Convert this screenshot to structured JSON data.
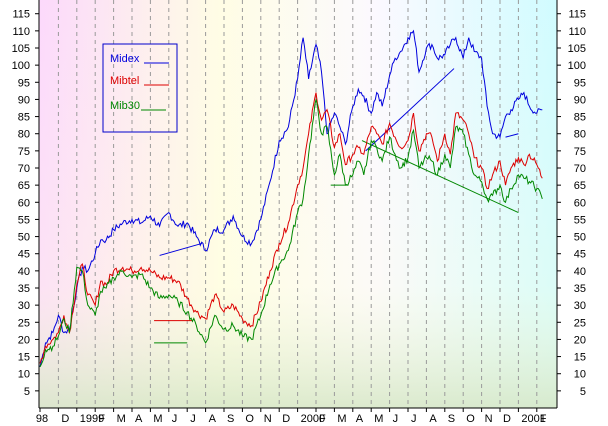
{
  "chart_data": {
    "type": "line",
    "y_ticks": [
      5,
      10,
      15,
      20,
      25,
      30,
      35,
      40,
      45,
      50,
      55,
      60,
      65,
      70,
      75,
      80,
      85,
      90,
      95,
      100,
      105,
      110,
      115
    ],
    "ylim": [
      0,
      119
    ],
    "x_ticks": [
      "98",
      "D",
      "1999",
      "F",
      "M",
      "A",
      "M",
      "J",
      "J",
      "A",
      "S",
      "O",
      "N",
      "D",
      "2000",
      "F",
      "M",
      "A",
      "M",
      "J",
      "J",
      "A",
      "S",
      "O",
      "N",
      "D",
      "2001",
      "F"
    ],
    "grid": "vertical-dashed",
    "legend": {
      "placement": "top-left",
      "entries": [
        "Midex",
        "Mibtel",
        "Mib30"
      ]
    },
    "series": [
      {
        "name": "Midex",
        "color": "#0000dd",
        "x": [
          0,
          0.3,
          0.7,
          1,
          1.3,
          1.6,
          2,
          2.3,
          2.6,
          3,
          3.3,
          3.6,
          4,
          4.5,
          5,
          5.5,
          6,
          6.5,
          7,
          7.5,
          8,
          8.5,
          9,
          9.5,
          10,
          10.5,
          11,
          11.5,
          12,
          12.5,
          13,
          13.5,
          14,
          14.3,
          14.6,
          15,
          15.3,
          15.6,
          16,
          16.3,
          16.6,
          17,
          17.3,
          17.6,
          18,
          18.3,
          18.6,
          19,
          19.3,
          19.6,
          20,
          20.3,
          20.6,
          21,
          21.3,
          21.6,
          22,
          22.3,
          22.6,
          23,
          23.3,
          23.6,
          24,
          24.3,
          24.6,
          25,
          25.3,
          25.6,
          26,
          26.3,
          26.6,
          27,
          27.3
        ],
        "values": [
          12,
          19,
          22,
          27,
          22,
          23,
          35,
          41,
          40,
          45,
          49,
          49,
          52,
          54,
          55,
          54,
          56,
          53,
          57,
          53,
          54,
          50,
          46,
          52,
          52,
          56,
          50,
          48,
          55,
          66,
          78,
          82,
          96,
          108,
          96,
          106,
          98,
          80,
          86,
          82,
          77,
          88,
          93,
          91,
          86,
          92,
          88,
          97,
          102,
          104,
          108,
          110,
          98,
          105,
          106,
          102,
          103,
          106,
          108,
          102,
          108,
          104,
          102,
          88,
          80,
          79,
          85,
          87,
          90,
          92,
          88,
          86,
          87
        ]
      },
      {
        "name": "Mibtel",
        "color": "#dd0000",
        "x": [
          0,
          0.3,
          0.7,
          1,
          1.3,
          1.6,
          2,
          2.3,
          2.6,
          3,
          3.3,
          3.6,
          4,
          4.5,
          5,
          5.5,
          6,
          6.5,
          7,
          7.5,
          8,
          8.5,
          9,
          9.5,
          10,
          10.5,
          11,
          11.5,
          12,
          12.5,
          13,
          13.5,
          14,
          14.3,
          14.6,
          15,
          15.3,
          15.6,
          16,
          16.3,
          16.6,
          17,
          17.3,
          17.6,
          18,
          18.3,
          18.6,
          19,
          19.3,
          19.6,
          20,
          20.3,
          20.6,
          21,
          21.3,
          21.6,
          22,
          22.3,
          22.6,
          23,
          23.3,
          23.6,
          24,
          24.3,
          24.6,
          25,
          25.3,
          25.6,
          26,
          26.3,
          26.6,
          27,
          27.3
        ],
        "values": [
          13,
          18,
          20,
          22,
          27,
          22,
          36,
          42,
          33,
          30,
          37,
          36,
          40,
          41,
          40,
          41,
          40,
          38,
          38,
          37,
          32,
          28,
          26,
          33,
          28,
          30,
          26,
          24,
          31,
          40,
          48,
          54,
          65,
          70,
          80,
          92,
          84,
          87,
          76,
          80,
          71,
          74,
          76,
          74,
          82,
          80,
          77,
          83,
          79,
          76,
          78,
          86,
          75,
          80,
          79,
          72,
          80,
          74,
          86,
          84,
          80,
          73,
          70,
          64,
          68,
          72,
          65,
          70,
          73,
          71,
          74,
          71,
          67
        ]
      },
      {
        "name": "Mib30",
        "color": "#008800",
        "x": [
          0,
          0.3,
          0.7,
          1,
          1.3,
          1.6,
          2,
          2.3,
          2.6,
          3,
          3.3,
          3.6,
          4,
          4.5,
          5,
          5.5,
          6,
          6.5,
          7,
          7.5,
          8,
          8.5,
          9,
          9.5,
          10,
          10.5,
          11,
          11.5,
          12,
          12.5,
          13,
          13.5,
          14,
          14.3,
          14.6,
          15,
          15.3,
          15.6,
          16,
          16.3,
          16.6,
          17,
          17.3,
          17.6,
          18,
          18.3,
          18.6,
          19,
          19.3,
          19.6,
          20,
          20.3,
          20.6,
          21,
          21.3,
          21.6,
          22,
          22.3,
          22.6,
          23,
          23.3,
          23.6,
          24,
          24.3,
          24.6,
          25,
          25.3,
          25.6,
          26,
          26.3,
          26.6,
          27,
          27.3
        ],
        "values": [
          12,
          17,
          18,
          21,
          26,
          22,
          41,
          40,
          30,
          27,
          34,
          35,
          38,
          40,
          38,
          39,
          35,
          32,
          33,
          31,
          28,
          24,
          19,
          27,
          23,
          24,
          21,
          20,
          27,
          36,
          42,
          46,
          57,
          61,
          74,
          90,
          80,
          82,
          68,
          74,
          65,
          68,
          72,
          68,
          78,
          76,
          72,
          79,
          74,
          70,
          73,
          81,
          70,
          73,
          72,
          68,
          74,
          70,
          82,
          80,
          74,
          68,
          66,
          61,
          62,
          65,
          60,
          64,
          68,
          67,
          66,
          64,
          61
        ]
      }
    ],
    "annotations": [
      {
        "x": [
          6.5,
          8.8
        ],
        "values": [
          44.5,
          48
        ],
        "color": "#0000dd"
      },
      {
        "x": [
          17.7,
          22.5
        ],
        "values": [
          75,
          99
        ],
        "color": "#0000dd"
      },
      {
        "x": [
          25.3,
          26.0
        ],
        "values": [
          79,
          80
        ],
        "color": "#0000dd"
      },
      {
        "x": [
          6.2,
          8.3
        ],
        "values": [
          25.5,
          25.5
        ],
        "color": "#dd0000"
      },
      {
        "x": [
          6.2,
          8.0
        ],
        "values": [
          19,
          19
        ],
        "color": "#008800"
      },
      {
        "x": [
          15.8,
          16.7
        ],
        "values": [
          65,
          65
        ],
        "color": "#008800"
      },
      {
        "x": [
          17.5,
          26.0
        ],
        "values": [
          78,
          57
        ],
        "color": "#008800"
      }
    ]
  }
}
